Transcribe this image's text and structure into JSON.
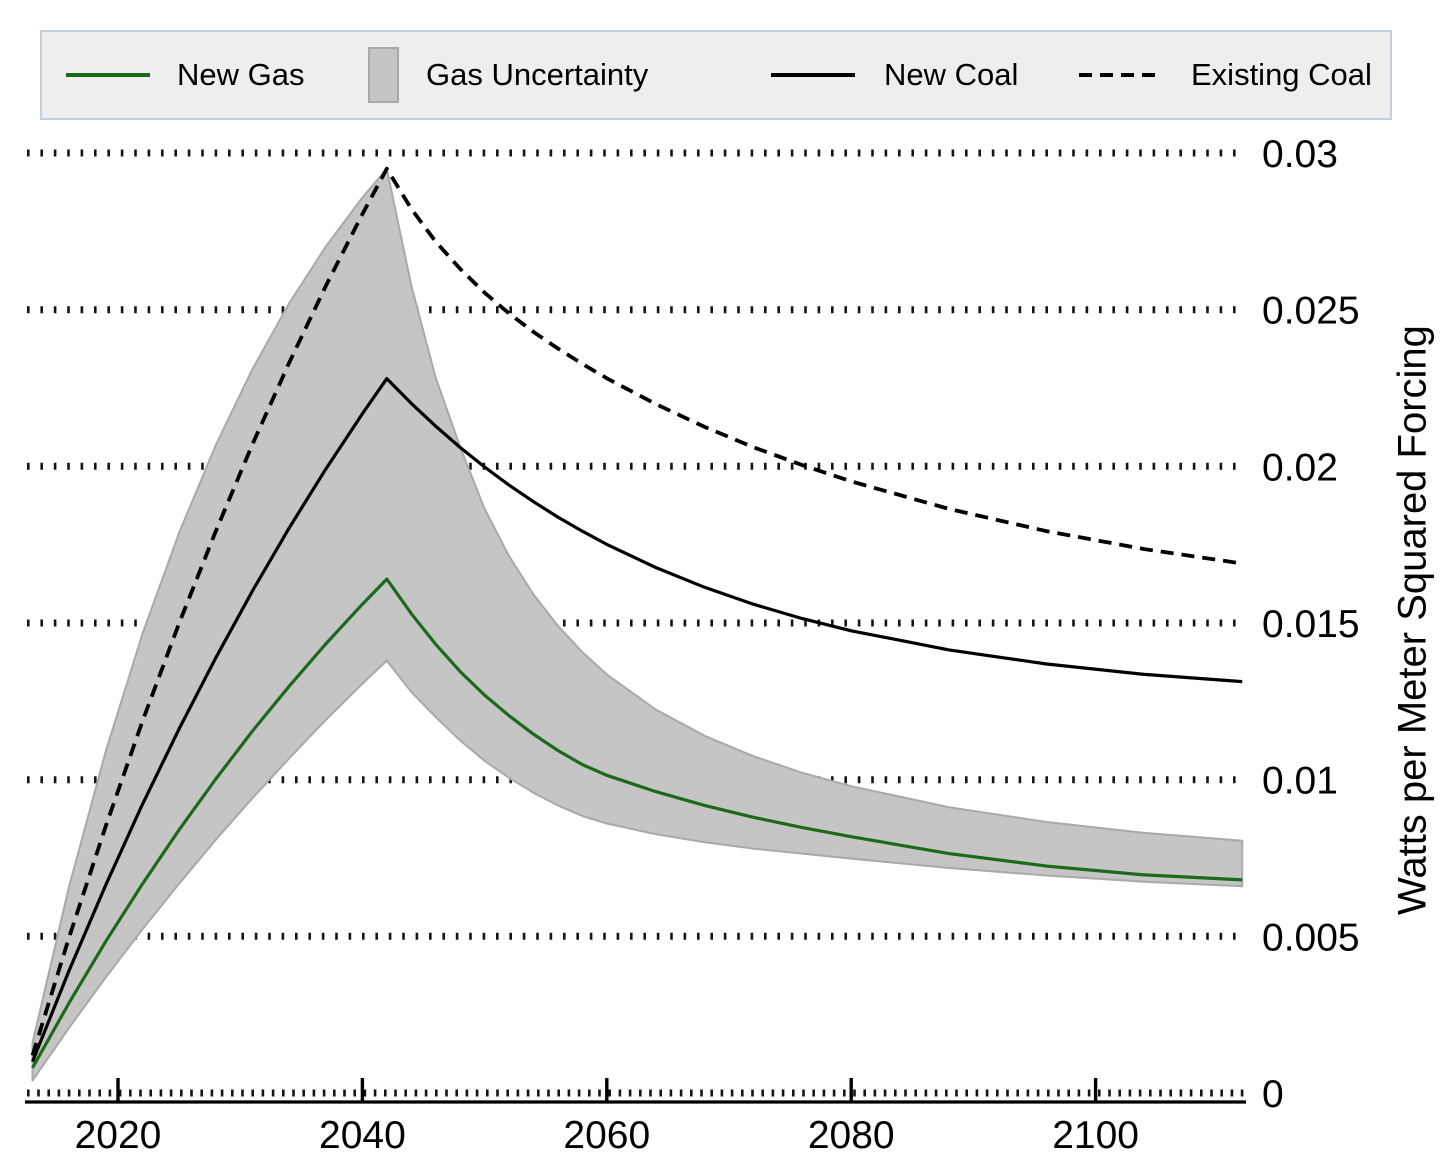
{
  "legend": {
    "items": [
      {
        "label": "New Gas",
        "swatch": "line",
        "color": "#1b691b",
        "dash": "solid"
      },
      {
        "label": "Gas Uncertainty",
        "swatch": "box",
        "color": "#c5c5c5",
        "edge": "#a9a9a9"
      },
      {
        "label": "New Coal",
        "swatch": "line",
        "color": "#000000",
        "dash": "solid"
      },
      {
        "label": "Existing Coal",
        "swatch": "line",
        "color": "#000000",
        "dash": "dashed"
      }
    ]
  },
  "axes": {
    "y_title": "Watts per Meter Squared Forcing"
  },
  "chart_data": {
    "type": "line",
    "title": "",
    "xlabel": "",
    "ylabel": "Watts per Meter Squared Forcing",
    "xlim": [
      2013,
      2112
    ],
    "ylim": [
      0,
      0.0305
    ],
    "grid": "dotted-horizontal",
    "legend_position": "top",
    "xticks": [
      2020,
      2040,
      2060,
      2080,
      2100
    ],
    "xtick_labels": [
      "2020",
      "2040",
      "2060",
      "2080",
      "2100"
    ],
    "yticks": [
      0,
      0.005,
      0.01,
      0.015,
      0.02,
      0.025,
      0.03
    ],
    "ytick_labels": [
      "0",
      "0.005",
      "0.01",
      "0.015",
      "0.02",
      "0.025",
      "0.03"
    ],
    "x": [
      2013,
      2016,
      2019,
      2022,
      2025,
      2028,
      2031,
      2034,
      2037,
      2040,
      2042,
      2044,
      2046,
      2048,
      2050,
      2052,
      2054,
      2056,
      2058,
      2060,
      2064,
      2068,
      2072,
      2076,
      2080,
      2088,
      2096,
      2104,
      2112
    ],
    "series": [
      {
        "name": "New Gas",
        "color": "#1b691b",
        "style": "solid",
        "width": 3.2,
        "values": [
          0.0008,
          0.00288,
          0.00484,
          0.00667,
          0.0084,
          0.01002,
          0.01155,
          0.01298,
          0.01433,
          0.0156,
          0.0164,
          0.0153,
          0.01432,
          0.01345,
          0.0127,
          0.01204,
          0.01145,
          0.01093,
          0.01048,
          0.01014,
          0.00962,
          0.00918,
          0.0088,
          0.00847,
          0.00818,
          0.00764,
          0.00724,
          0.00696,
          0.0068
        ]
      },
      {
        "name": "New Coal",
        "color": "#000000",
        "style": "solid",
        "width": 3.2,
        "values": [
          0.001,
          0.00391,
          0.00664,
          0.00921,
          0.01162,
          0.01389,
          0.01602,
          0.01803,
          0.01991,
          0.02168,
          0.0228,
          0.02201,
          0.02128,
          0.0206,
          0.01998,
          0.0194,
          0.01887,
          0.01838,
          0.01793,
          0.01751,
          0.01677,
          0.01614,
          0.0156,
          0.01514,
          0.01475,
          0.01414,
          0.01369,
          0.01336,
          0.01313
        ]
      },
      {
        "name": "Existing Coal",
        "color": "#000000",
        "style": "dashed",
        "width": 3.8,
        "values": [
          0.0012,
          0.00497,
          0.00852,
          0.01186,
          0.01499,
          0.01793,
          0.0207,
          0.0233,
          0.02575,
          0.02805,
          0.0295,
          0.02822,
          0.02717,
          0.0263,
          0.02554,
          0.02488,
          0.02429,
          0.02376,
          0.02327,
          0.02281,
          0.02199,
          0.02126,
          0.02061,
          0.02004,
          0.01952,
          0.01864,
          0.01793,
          0.01736,
          0.0169
        ]
      }
    ],
    "band": {
      "name": "Gas Uncertainty",
      "fill": "#c5c5c5",
      "edge": "#a9a9a9",
      "upper": [
        0.0016,
        0.00659,
        0.01091,
        0.01465,
        0.01788,
        0.02068,
        0.0231,
        0.0252,
        0.02701,
        0.02858,
        0.0295,
        0.02577,
        0.02283,
        0.02061,
        0.01864,
        0.01714,
        0.01591,
        0.01491,
        0.01407,
        0.01336,
        0.01224,
        0.0114,
        0.01075,
        0.01022,
        0.00979,
        0.00912,
        0.00865,
        0.0083,
        0.00805
      ],
      "lower": [
        0.0004,
        0.00208,
        0.00369,
        0.00522,
        0.00668,
        0.00808,
        0.00941,
        0.01068,
        0.0119,
        0.01306,
        0.0138,
        0.0128,
        0.012,
        0.01125,
        0.0106,
        0.01006,
        0.00958,
        0.00918,
        0.00884,
        0.0086,
        0.00826,
        0.008,
        0.0078,
        0.00764,
        0.00748,
        0.00718,
        0.00694,
        0.00674,
        0.0066
      ]
    }
  }
}
